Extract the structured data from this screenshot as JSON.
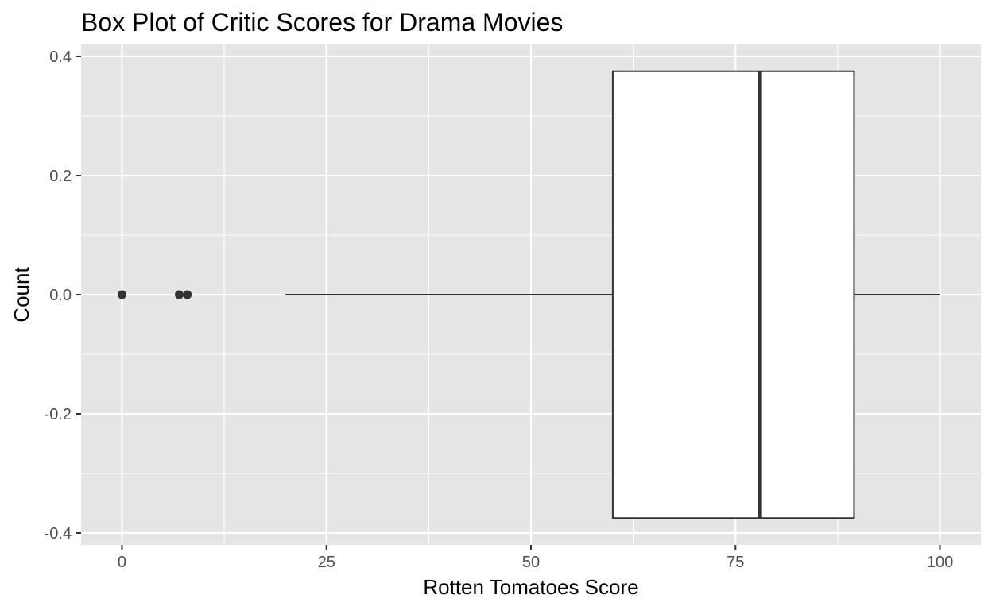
{
  "chart_data": {
    "type": "boxplot",
    "title": "Box Plot of Critic Scores for Drama Movies",
    "xlabel": "Rotten Tomatoes Score",
    "ylabel": "Count",
    "xlim": [
      -5,
      105
    ],
    "ylim": [
      -0.42,
      0.42
    ],
    "x_ticks": [
      0,
      25,
      50,
      75,
      100
    ],
    "x_tick_labels": [
      "0",
      "25",
      "50",
      "75",
      "100"
    ],
    "y_ticks": [
      -0.4,
      -0.2,
      0.0,
      0.2,
      0.4
    ],
    "y_tick_labels": [
      "-0.4",
      "-0.2",
      "0.0",
      "0.2",
      "0.4"
    ],
    "grid": true,
    "box": {
      "whisker_low": 20,
      "q1": 60,
      "median": 78,
      "q3": 89.5,
      "whisker_high": 100,
      "y_center": 0.0,
      "y_half_width": 0.375
    },
    "outliers": [
      0,
      7,
      8
    ],
    "colors": {
      "panel_background": "#e5e5e5",
      "grid": "#ffffff",
      "box_fill": "#ffffff",
      "box_stroke": "#333333",
      "outlier": "#333333",
      "tick_label": "#4d4d4d"
    }
  }
}
